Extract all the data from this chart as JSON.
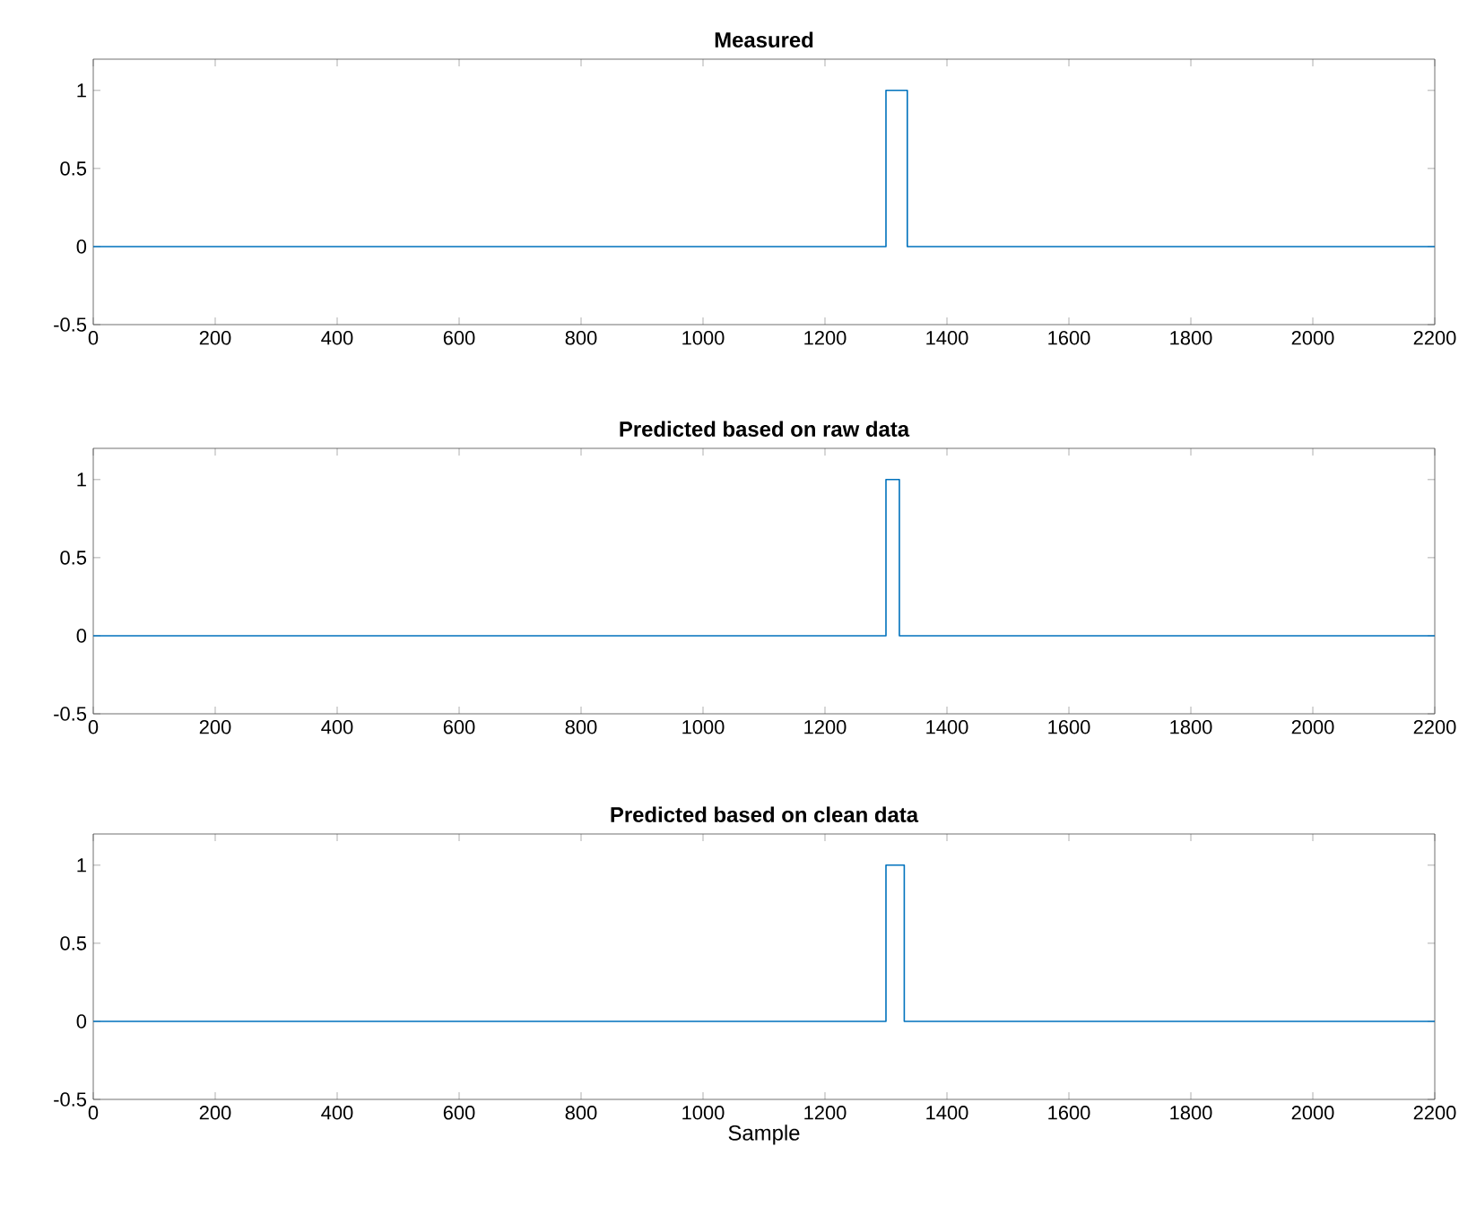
{
  "chart_data": [
    {
      "type": "step",
      "title": "Measured",
      "x": [
        0,
        1300,
        1335,
        2200
      ],
      "series": [
        {
          "color": "#0072bd",
          "values": [
            0,
            1,
            0,
            0
          ]
        }
      ],
      "xlim": [
        0,
        2200
      ],
      "xticks": [
        0,
        200,
        400,
        600,
        800,
        1000,
        1200,
        1400,
        1600,
        1800,
        2000,
        2200
      ],
      "ylim": [
        -0.5,
        1.2
      ],
      "yticks": [
        -0.5,
        0,
        0.5,
        1
      ]
    },
    {
      "type": "step",
      "title": "Predicted based on raw data",
      "x": [
        0,
        1300,
        1322,
        2200
      ],
      "series": [
        {
          "color": "#0072bd",
          "values": [
            0,
            1,
            0,
            0
          ]
        }
      ],
      "xlim": [
        0,
        2200
      ],
      "xticks": [
        0,
        200,
        400,
        600,
        800,
        1000,
        1200,
        1400,
        1600,
        1800,
        2000,
        2200
      ],
      "ylim": [
        -0.5,
        1.2
      ],
      "yticks": [
        -0.5,
        0,
        0.5,
        1
      ]
    },
    {
      "type": "step",
      "title": "Predicted based on clean data",
      "xlabel": "Sample",
      "x": [
        0,
        1300,
        1330,
        2200
      ],
      "series": [
        {
          "color": "#0072bd",
          "values": [
            0,
            1,
            0,
            0
          ]
        }
      ],
      "xlim": [
        0,
        2200
      ],
      "xticks": [
        0,
        200,
        400,
        600,
        800,
        1000,
        1200,
        1400,
        1600,
        1800,
        2000,
        2200
      ],
      "ylim": [
        -0.5,
        1.2
      ],
      "yticks": [
        -0.5,
        0,
        0.5,
        1
      ]
    }
  ]
}
